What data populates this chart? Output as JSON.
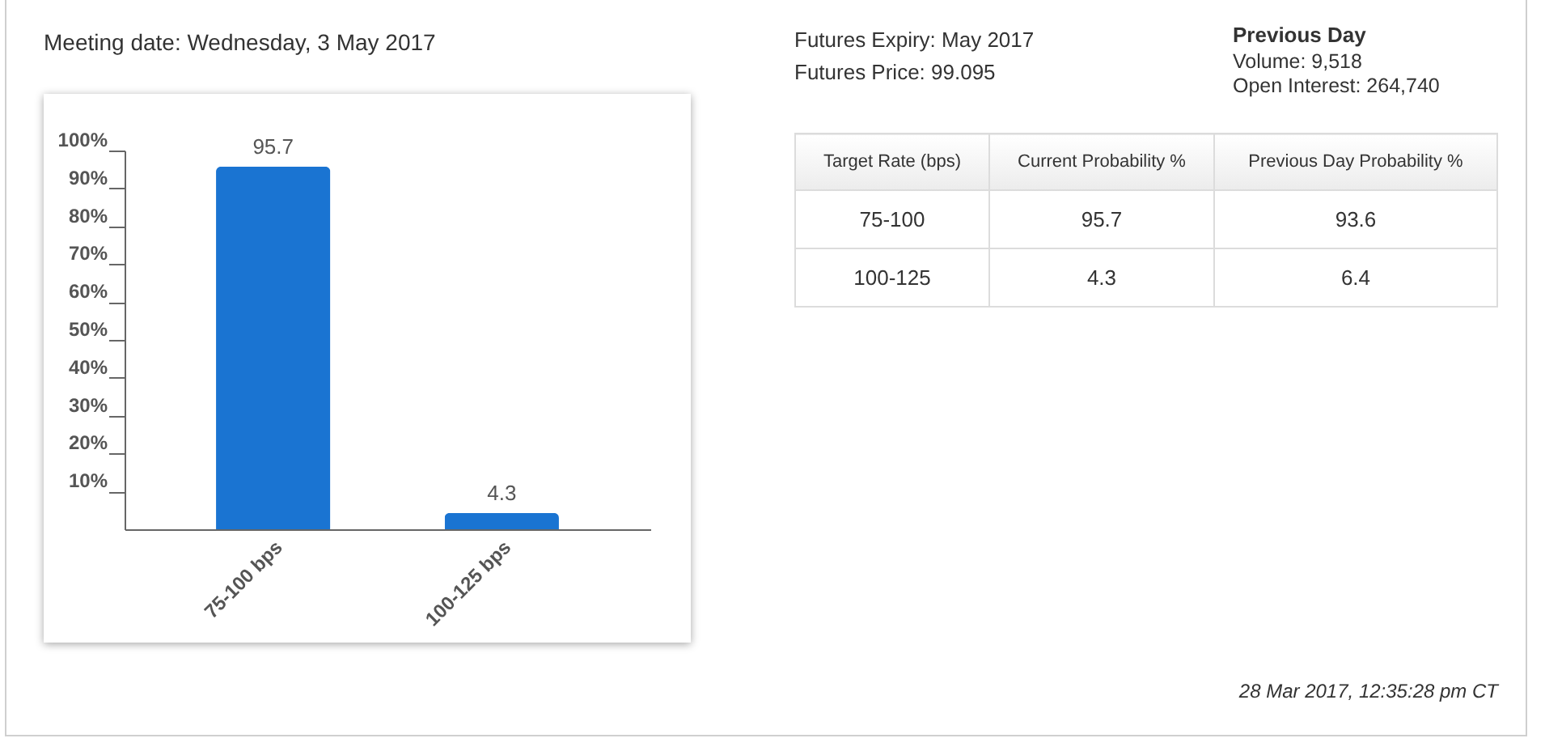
{
  "chart_data": [
    {
      "type": "bar",
      "title": "Meeting date: Wednesday, 3 May 2017",
      "categories": [
        "75-100 bps",
        "100-125 bps"
      ],
      "values": [
        95.7,
        4.3
      ],
      "color": "#1a74d2",
      "ylim": [
        0,
        100
      ],
      "yticks": [
        {
          "value": 10,
          "label": "10%"
        },
        {
          "value": 20,
          "label": "20%"
        },
        {
          "value": 30,
          "label": "30%"
        },
        {
          "value": 40,
          "label": "40%"
        },
        {
          "value": 50,
          "label": "50%"
        },
        {
          "value": 60,
          "label": "60%"
        },
        {
          "value": 70,
          "label": "70%"
        },
        {
          "value": 80,
          "label": "80%"
        },
        {
          "value": 90,
          "label": "90%"
        },
        {
          "value": 100,
          "label": "100%"
        }
      ],
      "data_labels": true
    },
    {
      "type": "other",
      "xlabel": "Target Rate (bps)",
      "categories": [
        "75-100",
        "100-125"
      ],
      "series": [
        {
          "name": "Current Probability %",
          "values": [
            95.7,
            4.3
          ]
        },
        {
          "name": "Previous Day Probability %",
          "values": [
            93.6,
            6.4
          ]
        }
      ],
      "data_labels": true,
      "annotations": [
        "Futures Expiry: May 2017",
        "Futures Price: 99.095",
        "Previous Day",
        "Volume: 9,518",
        "Open Interest: 264,740",
        "28 Mar 2017, 12:35:28 pm CT"
      ]
    }
  ]
}
